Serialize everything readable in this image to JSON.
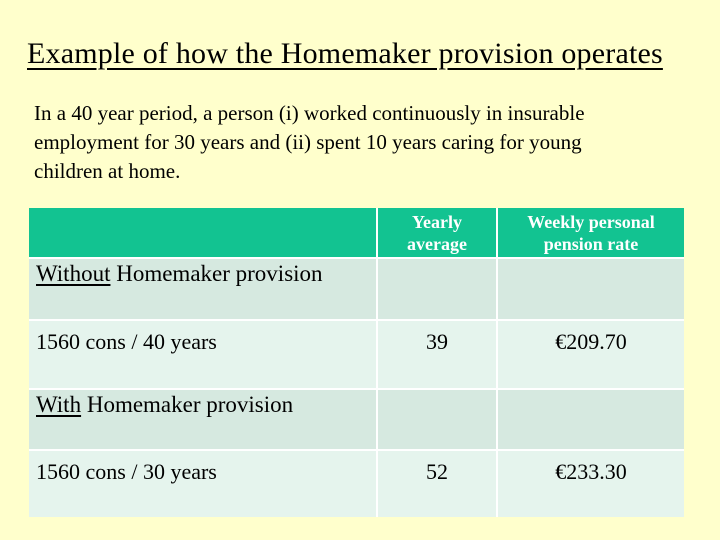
{
  "slide": {
    "background_color": "#FFFFCC",
    "title": "Example of how the Homemaker provision operates",
    "intro": "In a 40 year period, a person (i) worked continuously in insurable\nemployment for 30 years and (ii) spent 10 years caring for young\nchildren at home."
  },
  "colors": {
    "header_bg": "#12C391",
    "header_text": "#FFFFFF",
    "section_row_bg": "#D6E9E0",
    "data_row_bg": "#E5F4ED",
    "grid_line": "#FFFFFF",
    "body_text": "#000000"
  },
  "table": {
    "columns": [
      "",
      "Yearly average",
      "Weekly personal pension rate"
    ],
    "rows": [
      {
        "kind": "section",
        "word": "Without",
        "rest": " Homemaker provision",
        "yearly": "",
        "weekly": ""
      },
      {
        "kind": "data",
        "label": "1560 cons / 40 years",
        "yearly": "39",
        "weekly": "€209.70"
      },
      {
        "kind": "section",
        "word": "With",
        "rest": " Homemaker provision",
        "yearly": "",
        "weekly": ""
      },
      {
        "kind": "data",
        "label": "1560 cons / 30 years",
        "yearly": "52",
        "weekly": "€233.30"
      }
    ]
  }
}
